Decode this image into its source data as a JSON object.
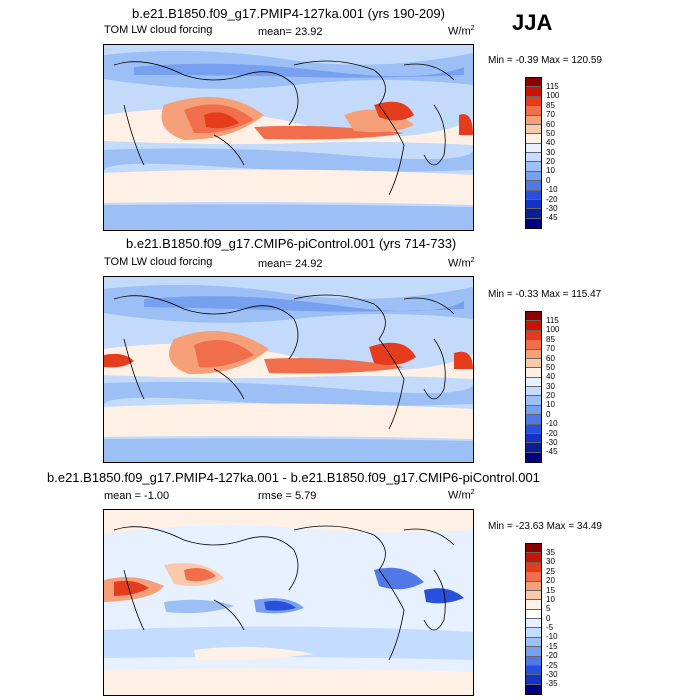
{
  "season": "JJA",
  "panels": [
    {
      "title": "b.e21.B1850.f09_g17.PMIP4-127ka.001 (yrs 190-209)",
      "left_label": "TOM LW cloud forcing",
      "center_label": "mean=  23.92",
      "units": "W/m",
      "units_sup": "2",
      "minmax": "Min =  -0.39 Max = 120.59",
      "colorbar": {
        "labels": [
          "115",
          "100",
          "85",
          "70",
          "60",
          "50",
          "40",
          "30",
          "20",
          "10",
          "0",
          "-10",
          "-20",
          "-30",
          "-45"
        ],
        "colors": [
          "#8b0000",
          "#c81400",
          "#e63c1e",
          "#f06e4b",
          "#f5a078",
          "#fac8aa",
          "#fff0e6",
          "#e6f0ff",
          "#c3dcff",
          "#9cc0f5",
          "#78a0f0",
          "#5078e6",
          "#2850dc",
          "#1432c8",
          "#0a1e96",
          "#000080"
        ]
      }
    },
    {
      "title": "b.e21.B1850.f09_g17.CMIP6-piControl.001 (yrs 714-733)",
      "left_label": "TOM LW cloud forcing",
      "center_label": "mean=  24.92",
      "units": "W/m",
      "units_sup": "2",
      "minmax": "Min =  -0.33 Max = 115.47",
      "colorbar": {
        "labels": [
          "115",
          "100",
          "85",
          "70",
          "60",
          "50",
          "40",
          "30",
          "20",
          "10",
          "0",
          "-10",
          "-20",
          "-30",
          "-45"
        ],
        "colors": [
          "#8b0000",
          "#c81400",
          "#e63c1e",
          "#f06e4b",
          "#f5a078",
          "#fac8aa",
          "#fff0e6",
          "#e6f0ff",
          "#c3dcff",
          "#9cc0f5",
          "#78a0f0",
          "#5078e6",
          "#2850dc",
          "#1432c8",
          "#0a1e96",
          "#000080"
        ]
      }
    },
    {
      "title": "b.e21.B1850.f09_g17.PMIP4-127ka.001 - b.e21.B1850.f09_g17.CMIP6-piControl.001",
      "left_label": "mean =  -1.00",
      "center_label": "rmse =   5.79",
      "units": "W/m",
      "units_sup": "2",
      "minmax": "Min = -23.63 Max =  34.49",
      "colorbar": {
        "labels": [
          "35",
          "30",
          "25",
          "20",
          "15",
          "10",
          "5",
          "0",
          "-5",
          "-10",
          "-15",
          "-20",
          "-25",
          "-30",
          "-35"
        ],
        "colors": [
          "#8b0000",
          "#c81400",
          "#e63c1e",
          "#f06e4b",
          "#f5a078",
          "#fac8aa",
          "#fff0e6",
          "#ffffff",
          "#e6f0ff",
          "#c3dcff",
          "#9cc0f5",
          "#78a0f0",
          "#5078e6",
          "#2850dc",
          "#1432c8",
          "#000080"
        ]
      }
    }
  ]
}
